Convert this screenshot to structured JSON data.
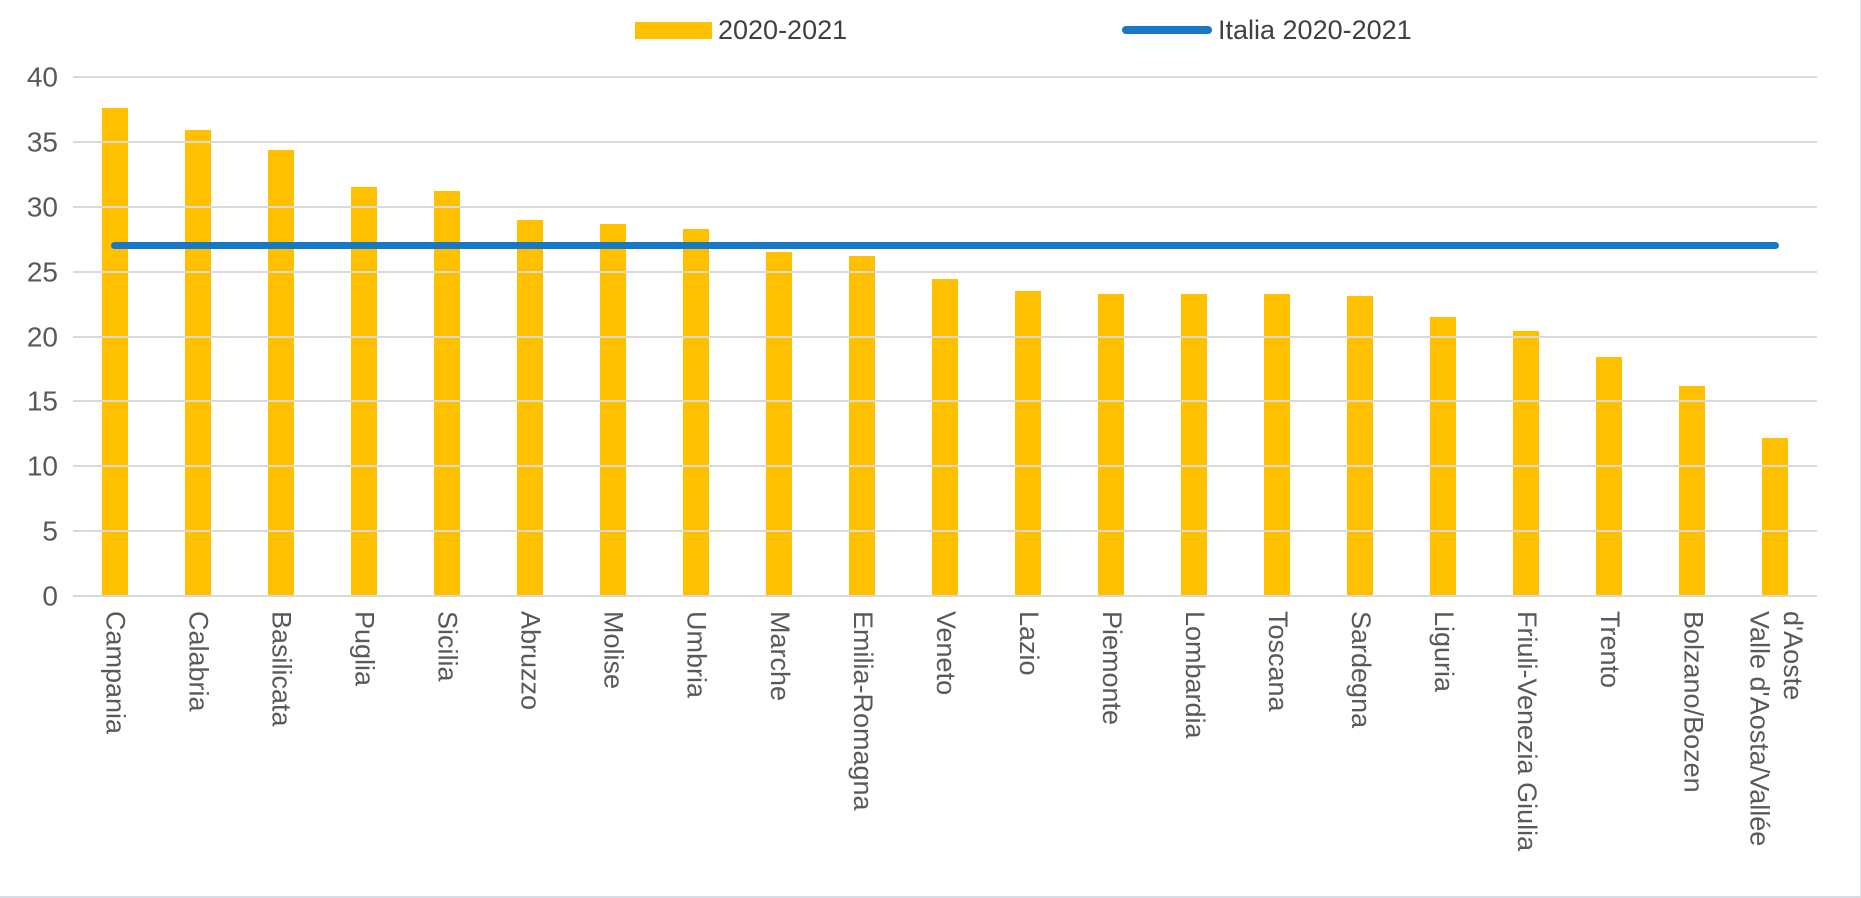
{
  "legend": {
    "bar_series_label": "2020-2021",
    "line_series_label": "Italia 2020-2021"
  },
  "colors": {
    "bar": "#FFC000",
    "line": "#1878C8",
    "gridline": "#D9D9D9",
    "tick_text": "#595959",
    "legend_text": "#404040"
  },
  "chart_data": {
    "type": "bar",
    "title": "",
    "xlabel": "",
    "ylabel": "",
    "ylim": [
      0,
      40
    ],
    "yticks": [
      0,
      5,
      10,
      15,
      20,
      25,
      30,
      35,
      40
    ],
    "grid": true,
    "legend_position": "top",
    "categories": [
      "Campania",
      "Calabria",
      "Basilicata",
      "Puglia",
      "Sicilia",
      "Abruzzo",
      "Molise",
      "Umbria",
      "Marche",
      "Emilia-Romagna",
      "Veneto",
      "Lazio",
      "Piemonte",
      "Lombardia",
      "Toscana",
      "Sardegna",
      "Liguria",
      "Friuli-Venezia Giulia",
      "Trento",
      "Bolzano/Bozen",
      "Valle d'Aosta/Vallée\nd'Aoste"
    ],
    "series": [
      {
        "name": "2020-2021",
        "type": "bar",
        "color": "#FFC000",
        "values": [
          37.6,
          35.9,
          34.4,
          31.5,
          31.2,
          29.0,
          28.7,
          28.3,
          26.5,
          26.2,
          24.4,
          23.5,
          23.3,
          23.3,
          23.3,
          23.1,
          21.5,
          20.4,
          18.4,
          16.2,
          12.2
        ]
      },
      {
        "name": "Italia 2020-2021",
        "type": "line",
        "color": "#1878C8",
        "value": 27.0
      }
    ]
  }
}
